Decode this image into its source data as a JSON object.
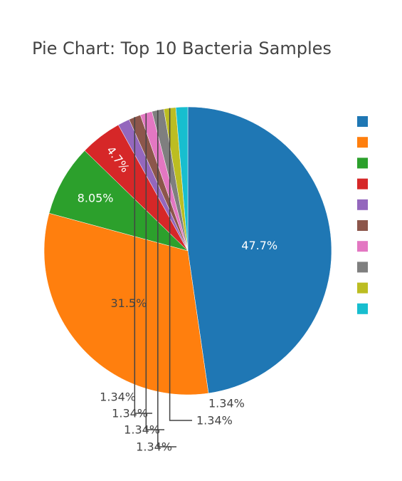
{
  "chart_data": {
    "type": "pie",
    "title": "Pie Chart: Top 10 Bacteria Samples",
    "categories": [
      "",
      "",
      "",
      "",
      "",
      "",
      "",
      "",
      "",
      ""
    ],
    "values": [
      47.7,
      31.5,
      8.05,
      4.7,
      1.34,
      1.34,
      1.34,
      1.34,
      1.34,
      1.34
    ],
    "labels": [
      "47.7%",
      "31.5%",
      "8.05%",
      "4.7%",
      "1.34%",
      "1.34%",
      "1.34%",
      "1.34%",
      "1.34%",
      "1.34%"
    ],
    "colors": [
      "#1f77b4",
      "#ff7f0e",
      "#2ca02c",
      "#d62728",
      "#9467bd",
      "#8c564b",
      "#e377c2",
      "#7f7f7f",
      "#bcbd22",
      "#17becf"
    ],
    "legend_position": "right",
    "direction": "clockwise",
    "start_angle_deg": 0
  }
}
